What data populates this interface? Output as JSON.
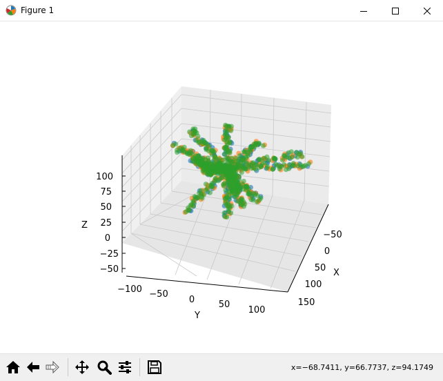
{
  "window": {
    "title": "Figure 1",
    "controls": {
      "minimize": "minimize",
      "maximize": "maximize",
      "close": "close"
    }
  },
  "toolbar": {
    "buttons": [
      {
        "name": "home-button",
        "icon": "home-icon"
      },
      {
        "name": "back-button",
        "icon": "arrow-left-icon"
      },
      {
        "name": "forward-button",
        "icon": "arrow-right-icon"
      },
      {
        "name": "pan-button",
        "icon": "move-icon"
      },
      {
        "name": "zoom-button",
        "icon": "magnifier-icon"
      },
      {
        "name": "configure-subplots-button",
        "icon": "sliders-icon"
      },
      {
        "name": "save-button",
        "icon": "floppy-disk-icon"
      }
    ],
    "coordinates": "x=−68.7411, y=66.7737, z=94.1749"
  },
  "chart_data": {
    "type": "scatter",
    "projection": "3d",
    "xlabel": "X",
    "ylabel": "Y",
    "zlabel": "Z",
    "x_ticks": [
      "−50",
      "0",
      "50",
      "100",
      "150"
    ],
    "y_ticks": [
      "−100",
      "−50",
      "0",
      "50",
      "100"
    ],
    "z_ticks": [
      "−50",
      "−25",
      "0",
      "25",
      "50",
      "75",
      "100"
    ],
    "grid": true,
    "series_colors": [
      "#1f77b4",
      "#ff7f0e",
      "#2ca02c"
    ],
    "point_count": "many (dense branching star-shaped cloud, ~8 arms)"
  }
}
